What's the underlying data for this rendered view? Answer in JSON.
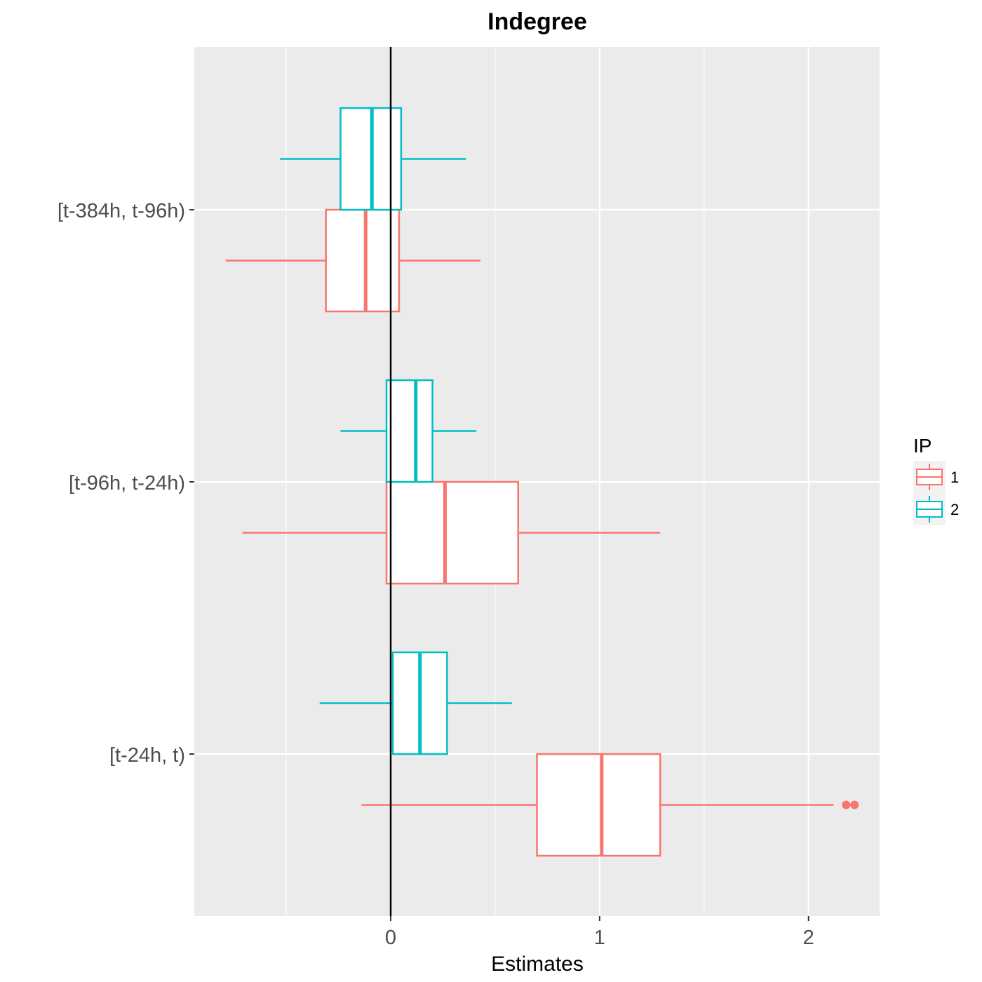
{
  "chart_data": {
    "type": "boxplot",
    "orientation": "horizontal",
    "title": "Indegree",
    "xlabel": "Estimates",
    "ylabel": "",
    "xlim": [
      -0.94,
      2.34
    ],
    "x_ticks": [
      0,
      1,
      2
    ],
    "x_tick_labels": [
      "0",
      "1",
      "2"
    ],
    "x_minor_gridlines": [
      -0.5,
      0.5,
      1.5
    ],
    "reference_line_x": 0,
    "categories": [
      "[t-384h, t-96h)",
      "[t-96h, t-24h)",
      "[t-24h, t)"
    ],
    "grid": true,
    "legend": {
      "title": "IP",
      "position": "right",
      "entries": [
        "1",
        "2"
      ]
    },
    "colors": {
      "1": "#F8766D",
      "2": "#00BFC4",
      "panel": "#EBEBEB",
      "grid": "#FFFFFF",
      "reference_line": "#000000"
    },
    "series": [
      {
        "name": "1",
        "boxes": [
          {
            "category": "[t-384h, t-96h)",
            "whisker_low": -0.79,
            "q1": -0.31,
            "median": -0.12,
            "q3": 0.04,
            "whisker_high": 0.43,
            "outliers": []
          },
          {
            "category": "[t-96h, t-24h)",
            "whisker_low": -0.71,
            "q1": -0.02,
            "median": 0.26,
            "q3": 0.61,
            "whisker_high": 1.29,
            "outliers": []
          },
          {
            "category": "[t-24h, t)",
            "whisker_low": -0.14,
            "q1": 0.7,
            "median": 1.01,
            "q3": 1.29,
            "whisker_high": 2.12,
            "outliers": [
              2.18,
              2.22
            ]
          }
        ]
      },
      {
        "name": "2",
        "boxes": [
          {
            "category": "[t-384h, t-96h)",
            "whisker_low": -0.53,
            "q1": -0.24,
            "median": -0.09,
            "q3": 0.05,
            "whisker_high": 0.36,
            "outliers": []
          },
          {
            "category": "[t-96h, t-24h)",
            "whisker_low": -0.24,
            "q1": -0.02,
            "median": 0.12,
            "q3": 0.2,
            "whisker_high": 0.41,
            "outliers": []
          },
          {
            "category": "[t-24h, t)",
            "whisker_low": -0.34,
            "q1": 0.01,
            "median": 0.14,
            "q3": 0.27,
            "whisker_high": 0.58,
            "outliers": []
          }
        ]
      }
    ]
  }
}
